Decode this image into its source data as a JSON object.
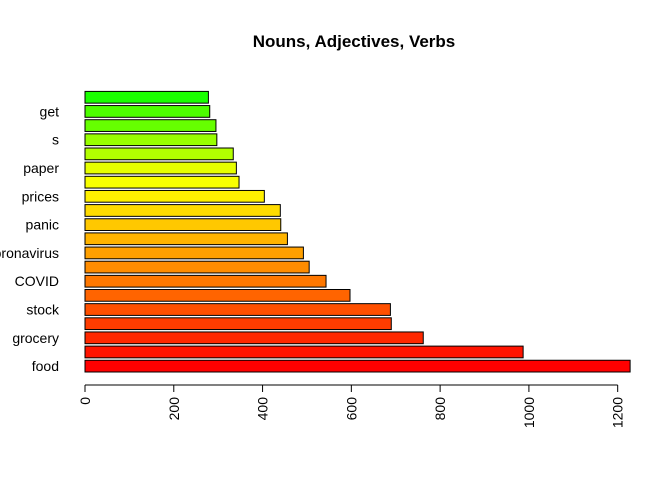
{
  "chart_data": {
    "type": "bar",
    "orientation": "horizontal",
    "title": "Nouns, Adjectives, Verbs",
    "xlabel": "",
    "ylabel": "",
    "xlim": [
      0,
      1230
    ],
    "x_ticks": [
      0,
      200,
      400,
      600,
      800,
      1000,
      1200
    ],
    "categories": [
      "food",
      "",
      "grocery",
      "",
      "stock",
      "",
      "COVID",
      "",
      "coronavirus",
      "",
      "panic",
      "",
      "prices",
      "",
      "paper",
      "",
      "s",
      "",
      "get",
      ""
    ],
    "values": [
      1228,
      987,
      762,
      690,
      688,
      597,
      543,
      505,
      492,
      456,
      441,
      440,
      404,
      347,
      341,
      334,
      297,
      295,
      281,
      278
    ],
    "colors": [
      "#FF0000",
      "#FF1400",
      "#FF2800",
      "#FF3C00",
      "#FF5000",
      "#FF6400",
      "#FF7800",
      "#FF8C00",
      "#FFA000",
      "#FFB400",
      "#FFC800",
      "#FFDC00",
      "#FFF000",
      "#F9FF00",
      "#E6FF00",
      "#B3FF00",
      "#99FF00",
      "#66FF00",
      "#4DFF00",
      "#1AFF00"
    ],
    "grid": false,
    "legend": "none"
  }
}
